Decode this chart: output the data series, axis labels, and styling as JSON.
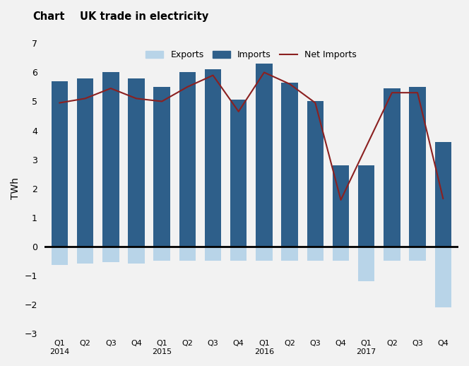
{
  "title_prefix": "Chart",
  "title": "UK trade in electricity",
  "ylabel": "TWh",
  "ylim": [
    -3,
    7
  ],
  "yticks": [
    -3,
    -2,
    -1,
    0,
    1,
    2,
    3,
    4,
    5,
    6,
    7
  ],
  "x_labels": [
    "Q1\n2014",
    "Q2",
    "Q3",
    "Q4",
    "Q1\n2015",
    "Q2",
    "Q3",
    "Q4",
    "Q1\n2016",
    "Q2",
    "Q3",
    "Q4",
    "Q1\n2017",
    "Q2",
    "Q3",
    "Q4"
  ],
  "imports": [
    5.7,
    5.8,
    6.0,
    5.8,
    5.5,
    6.0,
    6.1,
    5.05,
    6.3,
    5.65,
    5.0,
    2.8,
    2.8,
    5.45,
    5.5,
    3.6
  ],
  "exports": [
    -0.65,
    -0.6,
    -0.55,
    -0.6,
    -0.5,
    -0.5,
    -0.5,
    -0.5,
    -0.5,
    -0.5,
    -0.5,
    -0.5,
    -1.2,
    -0.5,
    -0.5,
    -2.1
  ],
  "net_imports": [
    4.95,
    5.1,
    5.45,
    5.1,
    5.0,
    5.5,
    5.9,
    4.65,
    6.0,
    5.6,
    4.95,
    1.6,
    3.45,
    5.3,
    5.3,
    1.65
  ],
  "imports_color": "#2e5f8a",
  "exports_color": "#b8d4e8",
  "net_imports_color": "#8b2020",
  "background_color": "#f2f2f2",
  "plot_bg_color": "#f2f2f2",
  "zero_line_color": "#000000",
  "legend_exports_label": "Exports",
  "legend_imports_label": "Imports",
  "legend_net_label": "Net Imports"
}
